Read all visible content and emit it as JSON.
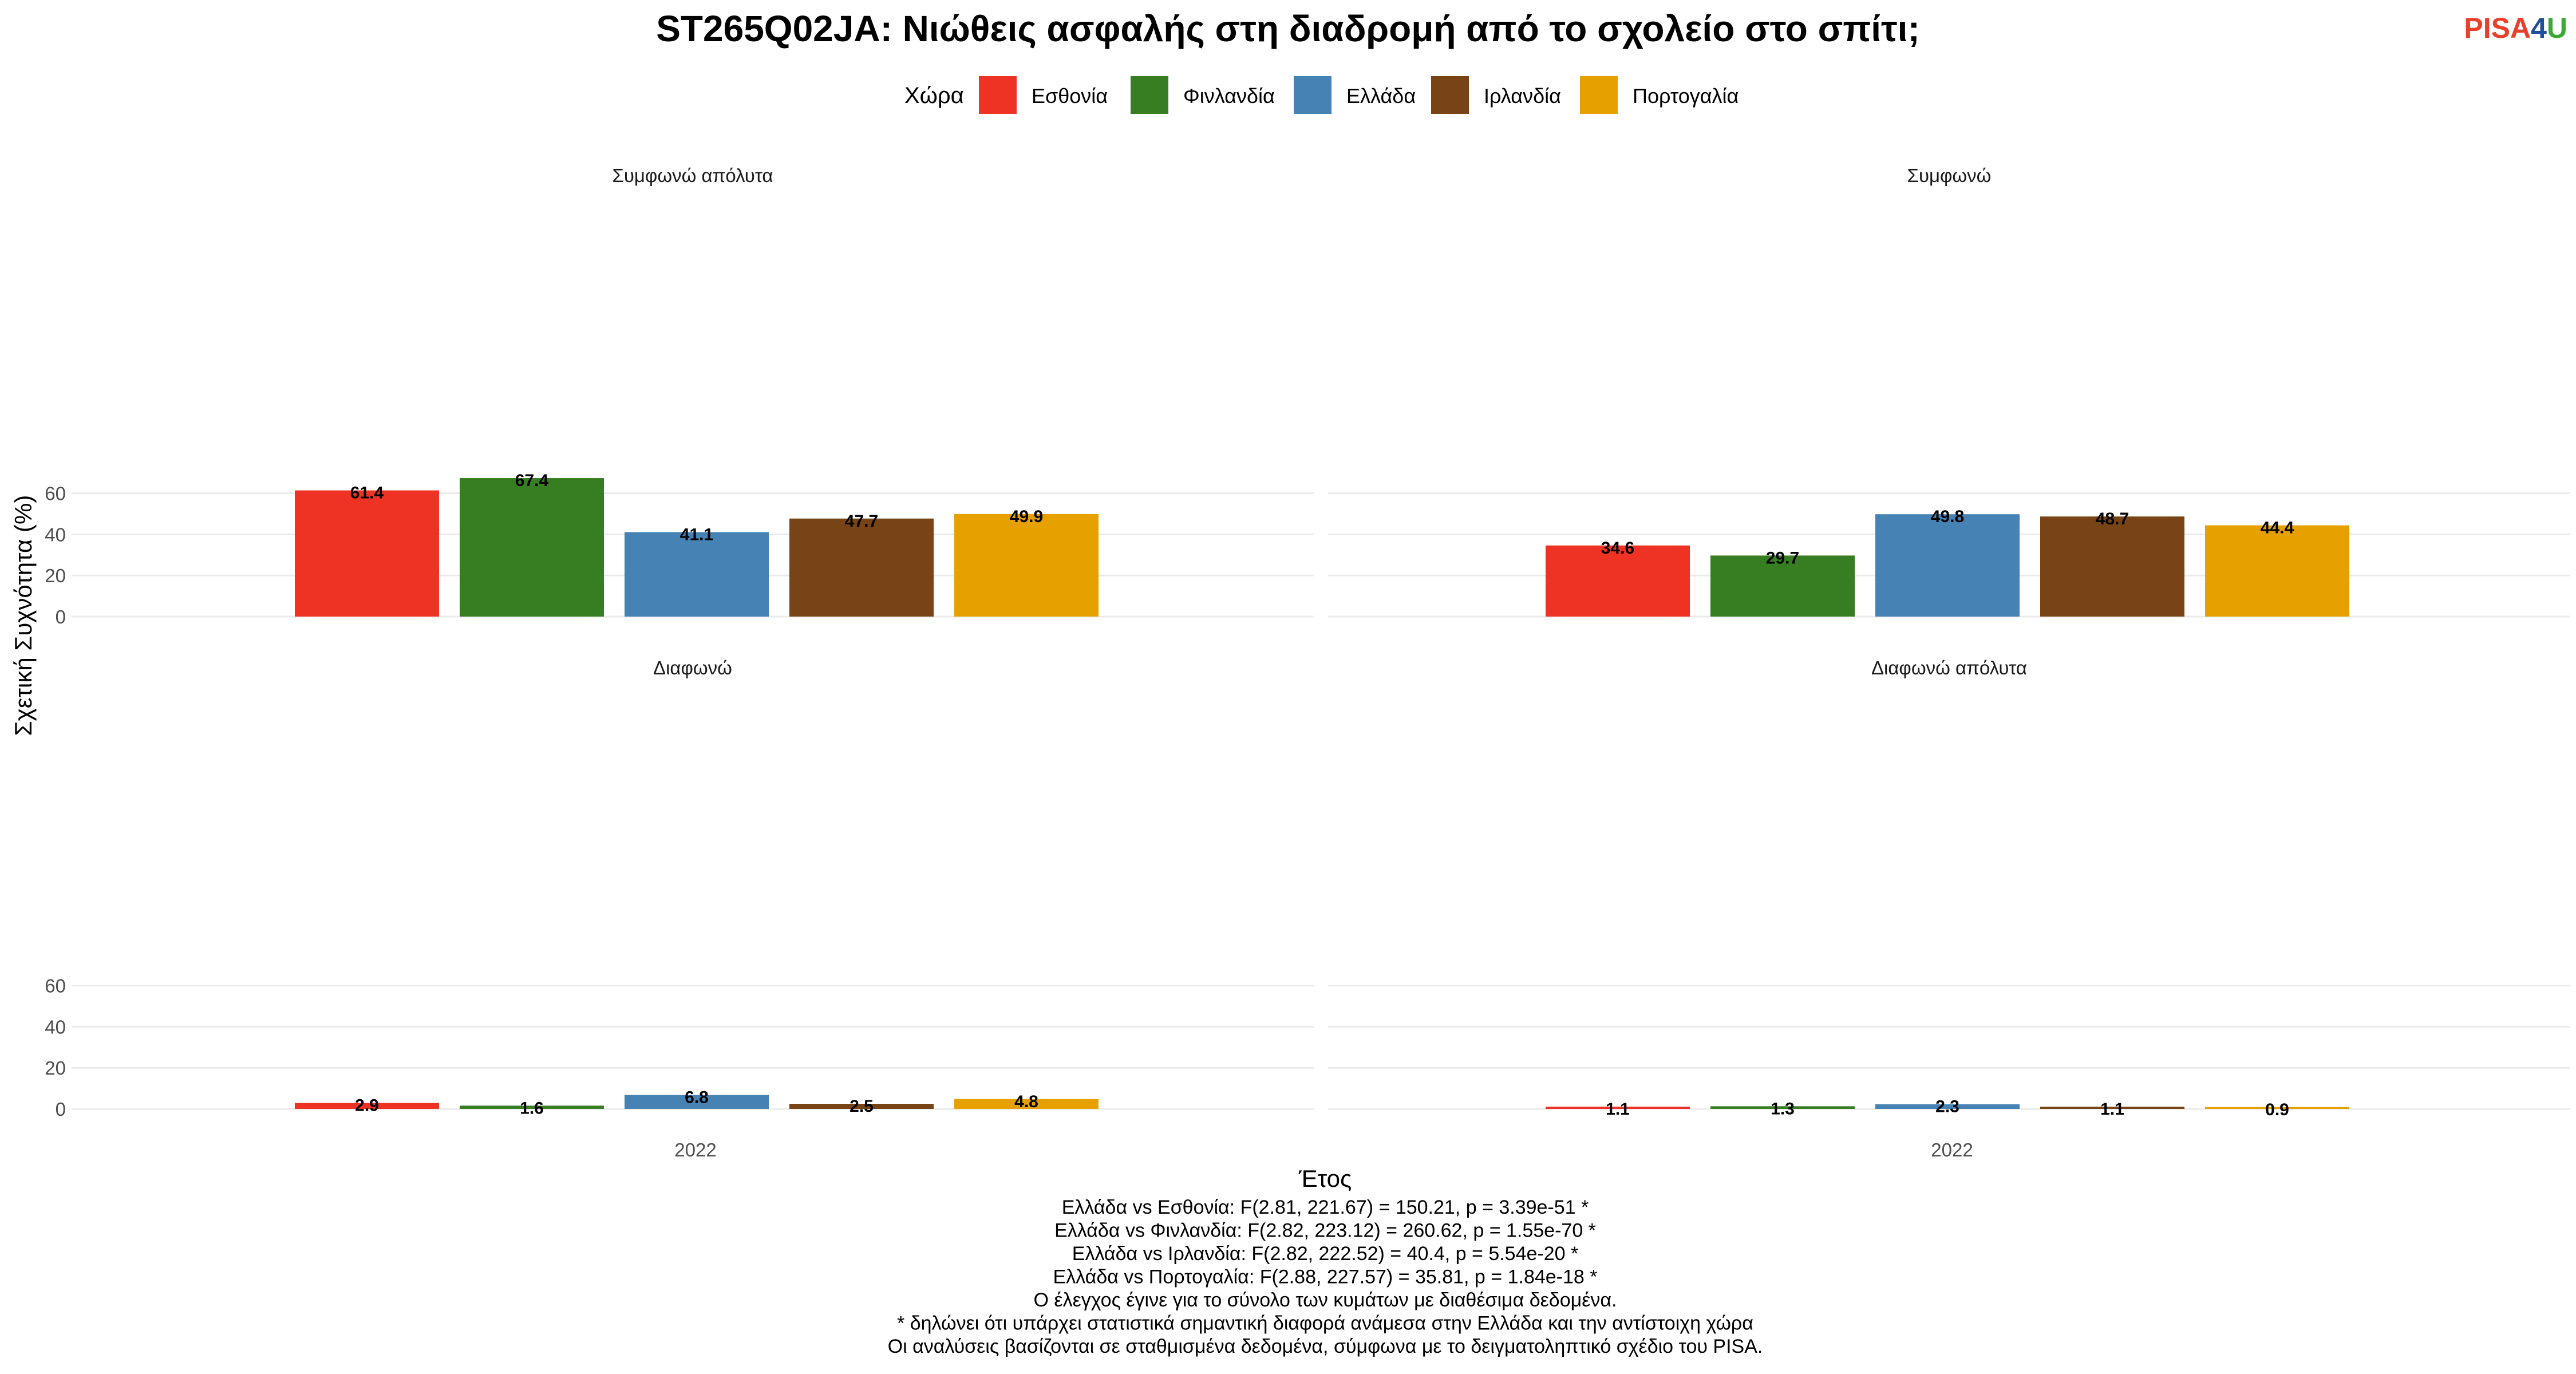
{
  "logo": {
    "part1": "PISA",
    "part2": "4",
    "part3": "U",
    "colors": {
      "part1": "#e8402a",
      "part2": "#1f4e9c",
      "part3": "#3aaa35"
    }
  },
  "chart_data": {
    "type": "bar",
    "title": "ST265Q02JA: Νιώθεις ασφαλής στη διαδρομή από το σχολείο στο σπίτι;",
    "xlabel": "Έτος",
    "ylabel": "Σχετική Συχνότητα (%)",
    "legend_title": "Χώρα",
    "legend_position": "top",
    "grid": true,
    "ylim": [
      0,
      70
    ],
    "yticks": [
      0,
      20,
      40,
      60
    ],
    "categories": [
      "2022"
    ],
    "series": [
      {
        "name": "Εσθονία",
        "color": "#EE3224"
      },
      {
        "name": "Φινλανδία",
        "color": "#377E22"
      },
      {
        "name": "Ελλάδα",
        "color": "#4682B4"
      },
      {
        "name": "Ιρλανδία",
        "color": "#784315"
      },
      {
        "name": "Πορτογαλία",
        "color": "#E6A100"
      }
    ],
    "panels": [
      {
        "label": "Συμφωνώ απόλυτα",
        "values": [
          61.4,
          67.4,
          41.1,
          47.7,
          49.9
        ],
        "labels": [
          "61.4",
          "67.4",
          "41.1",
          "47.7",
          "49.9"
        ]
      },
      {
        "label": "Συμφωνώ",
        "values": [
          34.6,
          29.7,
          49.8,
          48.7,
          44.4
        ],
        "labels": [
          "34.6",
          "29.7",
          "49.8",
          "48.7",
          "44.4"
        ]
      },
      {
        "label": "Διαφωνώ",
        "values": [
          2.9,
          1.6,
          6.8,
          2.5,
          4.8
        ],
        "labels": [
          "2.9",
          "1.6",
          "6.8",
          "2.5",
          "4.8"
        ]
      },
      {
        "label": "Διαφωνώ απόλυτα",
        "values": [
          1.1,
          1.3,
          2.3,
          1.1,
          0.9
        ],
        "labels": [
          "1.1",
          "1.3",
          "2.3",
          "1.1",
          "0.9"
        ]
      }
    ],
    "footnotes": [
      "Ελλάδα vs Εσθονία: F(2.81, 221.67) = 150.21, p = 3.39e-51 *",
      "Ελλάδα vs Φινλανδία: F(2.82, 223.12) = 260.62, p = 1.55e-70 *",
      "Ελλάδα vs Ιρλανδία: F(2.82, 222.52) = 40.4, p = 5.54e-20 *",
      "Ελλάδα vs Πορτογαλία: F(2.88, 227.57) = 35.81, p = 1.84e-18 *",
      "Ο έλεγχος έγινε για το σύνολο των κυμάτων με διαθέσιμα δεδομένα.",
      "* δηλώνει ότι υπάρχει στατιστικά σημαντική διαφορά ανάμεσα στην Ελλάδα και την αντίστοιχη χώρα",
      "Οι αναλύσεις βασίζονται σε σταθμισμένα δεδομένα, σύμφωνα με το δειγματοληπτικό σχέδιο του PISA."
    ]
  }
}
